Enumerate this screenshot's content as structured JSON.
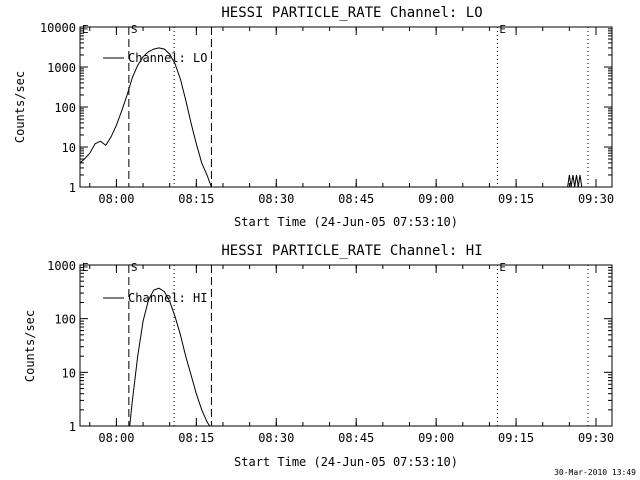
{
  "footer": {
    "timestamp": "30-Mar-2010 13:49"
  },
  "chart_data": [
    {
      "type": "line",
      "title": "HESSI PARTICLE_RATE Channel: LO",
      "xlabel": "Start Time (24-Jun-05 07:53:10)",
      "ylabel": "Counts/sec",
      "y_scale": "log",
      "ylim": [
        1,
        10000
      ],
      "xlim": [
        "07:53:10",
        "09:33:00"
      ],
      "x_ticks": [
        "08:00",
        "08:15",
        "08:30",
        "08:45",
        "09:00",
        "09:15",
        "09:30"
      ],
      "y_ticks": [
        "1",
        "10",
        "100",
        "1000",
        "10000"
      ],
      "legend": {
        "label": "Channel: LO",
        "placement": "top-left"
      },
      "markers": [
        {
          "label": "E",
          "time": "07:53:10",
          "style": "dotted"
        },
        {
          "label": "S",
          "time": "08:02:20",
          "style": "dashed"
        },
        {
          "label": "",
          "time": "08:10:50",
          "style": "dotted"
        },
        {
          "label": "",
          "time": "08:17:50",
          "style": "dashed"
        },
        {
          "label": "E",
          "time": "09:11:30",
          "style": "dotted"
        },
        {
          "label": "",
          "time": "09:28:30",
          "style": "dotted"
        }
      ],
      "series": [
        {
          "name": "Channel: LO",
          "points": [
            [
              "07:53:10",
              4
            ],
            [
              "07:54:00",
              5
            ],
            [
              "07:55:00",
              7
            ],
            [
              "07:56:00",
              12
            ],
            [
              "07:57:00",
              14
            ],
            [
              "07:58:00",
              11
            ],
            [
              "07:59:00",
              18
            ],
            [
              "08:00:00",
              35
            ],
            [
              "08:01:00",
              80
            ],
            [
              "08:02:00",
              200
            ],
            [
              "08:03:00",
              550
            ],
            [
              "08:04:00",
              1100
            ],
            [
              "08:05:00",
              1800
            ],
            [
              "08:06:00",
              2400
            ],
            [
              "08:07:00",
              2800
            ],
            [
              "08:08:00",
              3000
            ],
            [
              "08:09:00",
              2800
            ],
            [
              "08:10:00",
              2100
            ],
            [
              "08:11:00",
              1200
            ],
            [
              "08:12:00",
              500
            ],
            [
              "08:13:00",
              150
            ],
            [
              "08:14:00",
              40
            ],
            [
              "08:15:00",
              12
            ],
            [
              "08:16:00",
              4
            ],
            [
              "08:17:00",
              2
            ],
            [
              "08:17:50",
              1
            ]
          ]
        },
        {
          "name": "",
          "points": [
            [
              "09:24:40",
              1
            ],
            [
              "09:25:00",
              2
            ],
            [
              "09:25:20",
              1
            ],
            [
              "09:25:40",
              2
            ],
            [
              "09:26:00",
              1
            ],
            [
              "09:26:20",
              2
            ],
            [
              "09:26:40",
              1
            ],
            [
              "09:27:00",
              2
            ],
            [
              "09:27:20",
              1
            ]
          ]
        }
      ]
    },
    {
      "type": "line",
      "title": "HESSI PARTICLE_RATE Channel: HI",
      "xlabel": "Start Time (24-Jun-05 07:53:10)",
      "ylabel": "Counts/sec",
      "y_scale": "log",
      "ylim": [
        1,
        1000
      ],
      "xlim": [
        "07:53:10",
        "09:33:00"
      ],
      "x_ticks": [
        "08:00",
        "08:15",
        "08:30",
        "08:45",
        "09:00",
        "09:15",
        "09:30"
      ],
      "y_ticks": [
        "1",
        "10",
        "100",
        "1000"
      ],
      "legend": {
        "label": "Channel: HI",
        "placement": "top-left"
      },
      "markers": [
        {
          "label": "E",
          "time": "07:53:10",
          "style": "dotted"
        },
        {
          "label": "S",
          "time": "08:02:20",
          "style": "dashed"
        },
        {
          "label": "",
          "time": "08:10:50",
          "style": "dotted"
        },
        {
          "label": "",
          "time": "08:17:50",
          "style": "dashed"
        },
        {
          "label": "E",
          "time": "09:11:30",
          "style": "dotted"
        },
        {
          "label": "",
          "time": "09:28:30",
          "style": "dotted"
        }
      ],
      "series": [
        {
          "name": "Channel: HI",
          "points": [
            [
              "08:02:30",
              1
            ],
            [
              "08:03:00",
              3
            ],
            [
              "08:04:00",
              20
            ],
            [
              "08:05:00",
              90
            ],
            [
              "08:06:00",
              220
            ],
            [
              "08:07:00",
              340
            ],
            [
              "08:08:00",
              370
            ],
            [
              "08:09:00",
              320
            ],
            [
              "08:10:00",
              210
            ],
            [
              "08:11:00",
              110
            ],
            [
              "08:12:00",
              50
            ],
            [
              "08:13:00",
              20
            ],
            [
              "08:14:00",
              9
            ],
            [
              "08:15:00",
              4
            ],
            [
              "08:16:00",
              2
            ],
            [
              "08:17:00",
              1.2
            ],
            [
              "08:17:30",
              1
            ]
          ]
        }
      ]
    }
  ]
}
